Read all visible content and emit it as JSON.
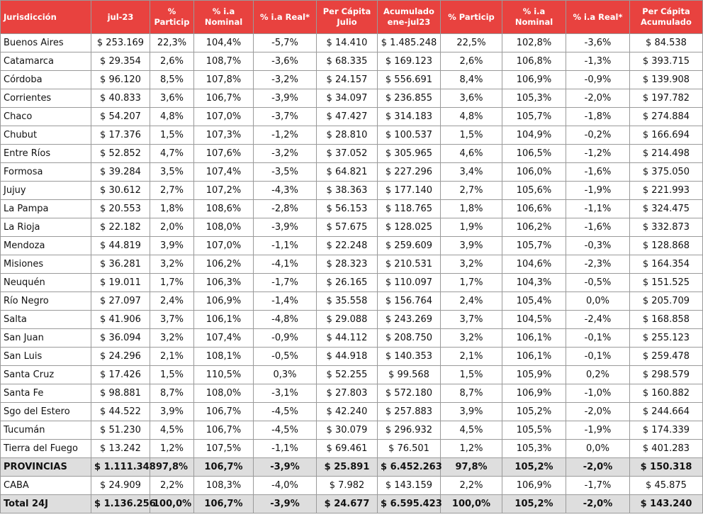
{
  "columns": [
    "Jurisdicción",
    "jul-23",
    "% Particip",
    "% i.a Nominal",
    "% i.a Real*",
    "Per Cápita Julio",
    "Acumulado ene-jul23",
    "% Particip",
    "% i.a Nominal",
    "% i.a Real*",
    "Per Cápita Acumulado"
  ],
  "rows": [
    [
      "Buenos Aires",
      "$ 253.169",
      "22,3%",
      "104,4%",
      "-5,7%",
      "$ 14.410",
      "$ 1.485.248",
      "22,5%",
      "102,8%",
      "-3,6%",
      "$ 84.538"
    ],
    [
      "Catamarca",
      "$ 29.354",
      "2,6%",
      "108,7%",
      "-3,6%",
      "$ 68.335",
      "$ 169.123",
      "2,6%",
      "106,8%",
      "-1,3%",
      "$ 393.715"
    ],
    [
      "Córdoba",
      "$ 96.120",
      "8,5%",
      "107,8%",
      "-3,2%",
      "$ 24.157",
      "$ 556.691",
      "8,4%",
      "106,9%",
      "-0,9%",
      "$ 139.908"
    ],
    [
      "Corrientes",
      "$ 40.833",
      "3,6%",
      "106,7%",
      "-3,9%",
      "$ 34.097",
      "$ 236.855",
      "3,6%",
      "105,3%",
      "-2,0%",
      "$ 197.782"
    ],
    [
      "Chaco",
      "$ 54.207",
      "4,8%",
      "107,0%",
      "-3,7%",
      "$ 47.427",
      "$ 314.183",
      "4,8%",
      "105,7%",
      "-1,8%",
      "$ 274.884"
    ],
    [
      "Chubut",
      "$ 17.376",
      "1,5%",
      "107,3%",
      "-1,2%",
      "$ 28.810",
      "$ 100.537",
      "1,5%",
      "104,9%",
      "-0,2%",
      "$ 166.694"
    ],
    [
      "Entre Ríos",
      "$ 52.852",
      "4,7%",
      "107,6%",
      "-3,2%",
      "$ 37.052",
      "$ 305.965",
      "4,6%",
      "106,5%",
      "-1,2%",
      "$ 214.498"
    ],
    [
      "Formosa",
      "$ 39.284",
      "3,5%",
      "107,4%",
      "-3,5%",
      "$ 64.821",
      "$ 227.296",
      "3,4%",
      "106,0%",
      "-1,6%",
      "$ 375.050"
    ],
    [
      "Jujuy",
      "$ 30.612",
      "2,7%",
      "107,2%",
      "-4,3%",
      "$ 38.363",
      "$ 177.140",
      "2,7%",
      "105,6%",
      "-1,9%",
      "$ 221.993"
    ],
    [
      "La Pampa",
      "$ 20.553",
      "1,8%",
      "108,6%",
      "-2,8%",
      "$ 56.153",
      "$ 118.765",
      "1,8%",
      "106,6%",
      "-1,1%",
      "$ 324.475"
    ],
    [
      "La Rioja",
      "$ 22.182",
      "2,0%",
      "108,0%",
      "-3,9%",
      "$ 57.675",
      "$ 128.025",
      "1,9%",
      "106,2%",
      "-1,6%",
      "$ 332.873"
    ],
    [
      "Mendoza",
      "$ 44.819",
      "3,9%",
      "107,0%",
      "-1,1%",
      "$ 22.248",
      "$ 259.609",
      "3,9%",
      "105,7%",
      "-0,3%",
      "$ 128.868"
    ],
    [
      "Misiones",
      "$ 36.281",
      "3,2%",
      "106,2%",
      "-4,1%",
      "$ 28.323",
      "$ 210.531",
      "3,2%",
      "104,6%",
      "-2,3%",
      "$ 164.354"
    ],
    [
      "Neuquén",
      "$ 19.011",
      "1,7%",
      "106,3%",
      "-1,7%",
      "$ 26.165",
      "$ 110.097",
      "1,7%",
      "104,3%",
      "-0,5%",
      "$ 151.525"
    ],
    [
      "Río Negro",
      "$ 27.097",
      "2,4%",
      "106,9%",
      "-1,4%",
      "$ 35.558",
      "$ 156.764",
      "2,4%",
      "105,4%",
      "0,0%",
      "$ 205.709"
    ],
    [
      "Salta",
      "$ 41.906",
      "3,7%",
      "106,1%",
      "-4,8%",
      "$ 29.088",
      "$ 243.269",
      "3,7%",
      "104,5%",
      "-2,4%",
      "$ 168.858"
    ],
    [
      "San Juan",
      "$ 36.094",
      "3,2%",
      "107,4%",
      "-0,9%",
      "$ 44.112",
      "$ 208.750",
      "3,2%",
      "106,1%",
      "-0,1%",
      "$ 255.123"
    ],
    [
      "San Luis",
      "$ 24.296",
      "2,1%",
      "108,1%",
      "-0,5%",
      "$ 44.918",
      "$ 140.353",
      "2,1%",
      "106,1%",
      "-0,1%",
      "$ 259.478"
    ],
    [
      "Santa Cruz",
      "$ 17.426",
      "1,5%",
      "110,5%",
      "0,3%",
      "$ 52.255",
      "$ 99.568",
      "1,5%",
      "105,9%",
      "0,2%",
      "$ 298.579"
    ],
    [
      "Santa Fe",
      "$ 98.881",
      "8,7%",
      "108,0%",
      "-3,1%",
      "$ 27.803",
      "$ 572.180",
      "8,7%",
      "106,9%",
      "-1,0%",
      "$ 160.882"
    ],
    [
      "Sgo del Estero",
      "$ 44.522",
      "3,9%",
      "106,7%",
      "-4,5%",
      "$ 42.240",
      "$ 257.883",
      "3,9%",
      "105,2%",
      "-2,0%",
      "$ 244.664"
    ],
    [
      "Tucumán",
      "$ 51.230",
      "4,5%",
      "106,7%",
      "-4,5%",
      "$ 30.079",
      "$ 296.932",
      "4,5%",
      "105,5%",
      "-1,9%",
      "$ 174.339"
    ],
    [
      "Tierra del Fuego",
      "$ 13.242",
      "1,2%",
      "107,5%",
      "-1,1%",
      "$ 69.461",
      "$ 76.501",
      "1,2%",
      "105,3%",
      "0,0%",
      "$ 401.283"
    ]
  ],
  "subtotal": [
    "PROVINCIAS",
    "$ 1.111.348",
    "97,8%",
    "106,7%",
    "-3,9%",
    "$ 25.891",
    "$ 6.452.263",
    "97,8%",
    "105,2%",
    "-2,0%",
    "$ 150.318"
  ],
  "caba": [
    "CABA",
    "$ 24.909",
    "2,2%",
    "108,3%",
    "-4,0%",
    "$ 7.982",
    "$ 143.159",
    "2,2%",
    "106,9%",
    "-1,7%",
    "$ 45.875"
  ],
  "total": [
    "Total 24J",
    "$ 1.136.256",
    "100,0%",
    "106,7%",
    "-3,9%",
    "$ 24.677",
    "$ 6.595.423",
    "100,0%",
    "105,2%",
    "-2,0%",
    "$ 143.240"
  ],
  "colors": {
    "header_bg": "#e8423f",
    "header_text": "#ffffff",
    "total_row_bg": "#dedede"
  }
}
